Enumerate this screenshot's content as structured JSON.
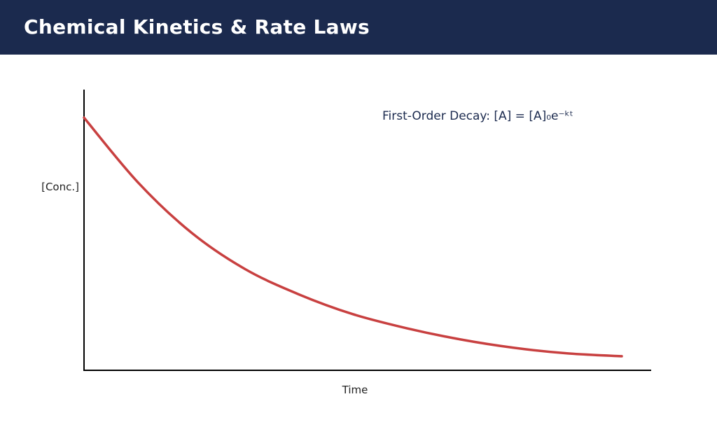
{
  "header": {
    "title": "Chemical Kinetics & Rate Laws"
  },
  "colors": {
    "header_bg": "#1b2a4e",
    "curve": "#c84040",
    "annotation": "#1b2a4e",
    "axis": "#000000"
  },
  "chart_data": {
    "type": "line",
    "title": "",
    "xlabel": "Time",
    "ylabel": "[Conc.]",
    "annotation": "First-Order Decay: [A] = [A]₀e⁻ᵏᵗ",
    "grid": false,
    "legend": "none",
    "xlim": [
      0,
      10
    ],
    "ylim": [
      0,
      1
    ],
    "series": [
      {
        "x": [
          0,
          1,
          2,
          3,
          4,
          5,
          6,
          7,
          8,
          9,
          10
        ],
        "values": [
          0.9,
          0.67,
          0.49,
          0.36,
          0.27,
          0.2,
          0.15,
          0.11,
          0.08,
          0.06,
          0.05
        ]
      }
    ]
  }
}
